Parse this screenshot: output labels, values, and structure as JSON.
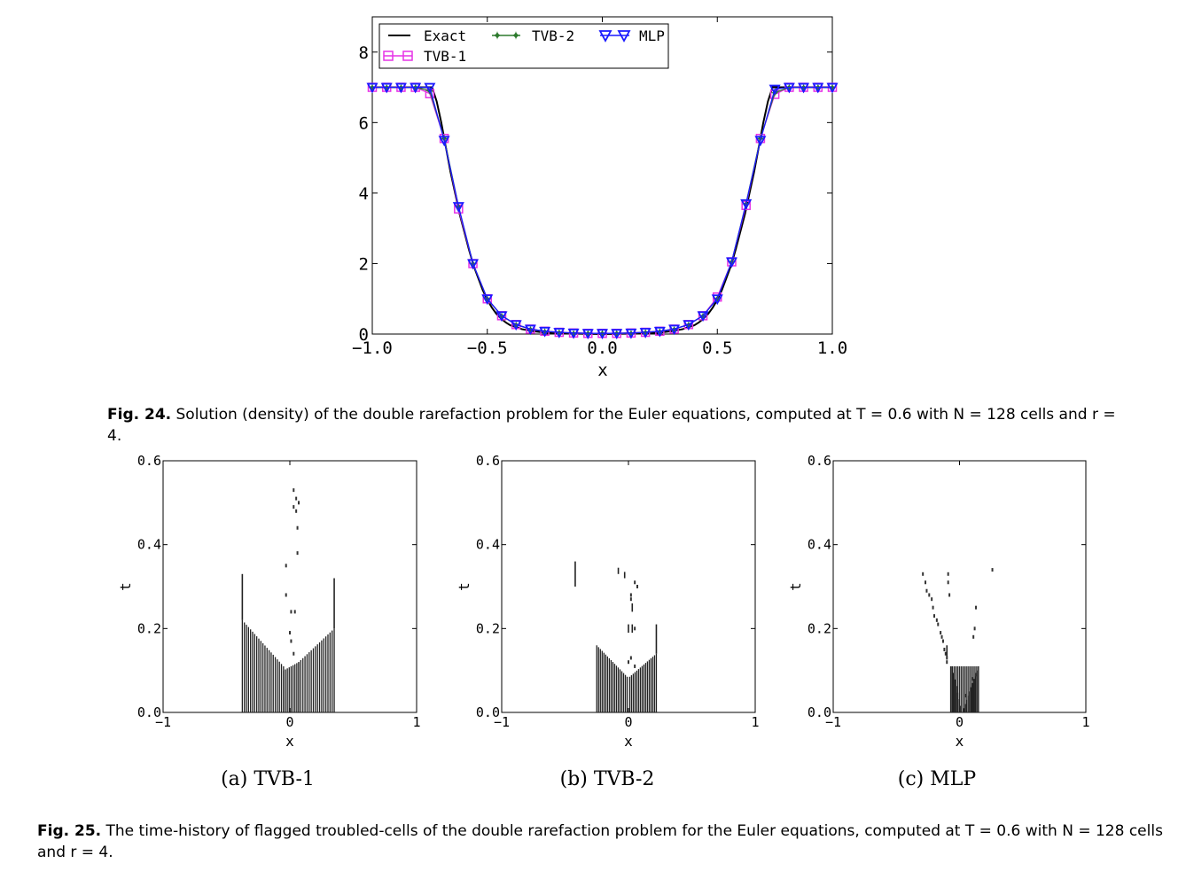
{
  "figure24": {
    "caption_label": "Fig. 24.",
    "caption_text": "Solution (density) of the double rarefaction problem for the Euler equations, computed at T = 0.6 with N = 128 cells and r = 4.",
    "chart_data": {
      "type": "line",
      "xlabel": "x",
      "ylabel": "",
      "xlim": [
        -1.0,
        1.0
      ],
      "ylim": [
        0,
        9
      ],
      "x_ticks": [
        "−1.0",
        "−0.5",
        "0.0",
        "0.5",
        "1.0"
      ],
      "y_ticks": [
        "0",
        "2",
        "4",
        "6",
        "8"
      ],
      "legend": [
        "Exact",
        "TVB-2",
        "MLP",
        "TVB-1"
      ],
      "legend_position": "top",
      "series": [
        {
          "name": "Exact",
          "color": "#000000",
          "marker": "none",
          "x": [
            -1.0,
            -0.74,
            -0.72,
            -0.7,
            -0.68,
            -0.66,
            -0.64,
            -0.62,
            -0.6,
            -0.58,
            -0.56,
            -0.54,
            -0.52,
            -0.5,
            -0.48,
            -0.46,
            -0.44,
            -0.42,
            -0.4,
            -0.35,
            -0.3,
            -0.25,
            -0.2,
            -0.1,
            0.0,
            0.1,
            0.2,
            0.25,
            0.3,
            0.35,
            0.4,
            0.42,
            0.44,
            0.46,
            0.48,
            0.5,
            0.52,
            0.54,
            0.56,
            0.58,
            0.6,
            0.62,
            0.64,
            0.66,
            0.68,
            0.7,
            0.72,
            0.74,
            1.0
          ],
          "y": [
            7.0,
            7.0,
            6.6,
            6.0,
            5.3,
            4.6,
            4.0,
            3.4,
            2.9,
            2.4,
            1.95,
            1.6,
            1.25,
            0.97,
            0.75,
            0.57,
            0.44,
            0.33,
            0.25,
            0.14,
            0.08,
            0.04,
            0.02,
            0.01,
            0.0,
            0.01,
            0.02,
            0.04,
            0.08,
            0.14,
            0.25,
            0.33,
            0.44,
            0.57,
            0.75,
            0.97,
            1.25,
            1.6,
            1.95,
            2.4,
            2.9,
            3.4,
            4.0,
            4.6,
            5.3,
            6.0,
            6.6,
            7.0,
            7.0
          ]
        },
        {
          "name": "TVB-1",
          "color": "#e633e6",
          "marker": "square",
          "x": [
            -1.0,
            -0.9375,
            -0.875,
            -0.8125,
            -0.75,
            -0.6875,
            -0.625,
            -0.5625,
            -0.5,
            -0.4375,
            -0.375,
            -0.3125,
            -0.25,
            -0.1875,
            -0.125,
            -0.0625,
            0.0,
            0.0625,
            0.125,
            0.1875,
            0.25,
            0.3125,
            0.375,
            0.4375,
            0.5,
            0.5625,
            0.625,
            0.6875,
            0.75,
            0.8125,
            0.875,
            0.9375,
            1.0
          ],
          "y": [
            7.0,
            7.0,
            7.0,
            7.0,
            6.82,
            5.55,
            3.55,
            2.0,
            1.0,
            0.52,
            0.27,
            0.14,
            0.08,
            0.05,
            0.03,
            0.02,
            0.02,
            0.02,
            0.03,
            0.05,
            0.08,
            0.14,
            0.27,
            0.52,
            1.05,
            2.05,
            3.65,
            5.55,
            6.8,
            7.0,
            7.0,
            7.0,
            7.0
          ]
        },
        {
          "name": "TVB-2",
          "color": "#2d7a2d",
          "marker": "star",
          "x": [
            -1.0,
            -0.9375,
            -0.875,
            -0.8125,
            -0.75,
            -0.6875,
            -0.625,
            -0.5625,
            -0.5,
            -0.4375,
            -0.375,
            -0.3125,
            -0.25,
            -0.1875,
            -0.125,
            -0.0625,
            0.0,
            0.0625,
            0.125,
            0.1875,
            0.25,
            0.3125,
            0.375,
            0.4375,
            0.5,
            0.5625,
            0.625,
            0.6875,
            0.75,
            0.8125,
            0.875,
            0.9375,
            1.0
          ],
          "y": [
            7.0,
            7.0,
            7.0,
            7.0,
            6.9,
            5.55,
            3.62,
            2.0,
            1.0,
            0.52,
            0.27,
            0.14,
            0.08,
            0.05,
            0.03,
            0.02,
            0.02,
            0.02,
            0.03,
            0.05,
            0.08,
            0.14,
            0.27,
            0.52,
            1.0,
            2.05,
            3.7,
            5.55,
            6.85,
            7.0,
            7.0,
            7.0,
            7.0
          ]
        },
        {
          "name": "MLP",
          "color": "#1a1aff",
          "marker": "triangle-down",
          "x": [
            -1.0,
            -0.9375,
            -0.875,
            -0.8125,
            -0.75,
            -0.6875,
            -0.625,
            -0.5625,
            -0.5,
            -0.4375,
            -0.375,
            -0.3125,
            -0.25,
            -0.1875,
            -0.125,
            -0.0625,
            0.0,
            0.0625,
            0.125,
            0.1875,
            0.25,
            0.3125,
            0.375,
            0.4375,
            0.5,
            0.5625,
            0.625,
            0.6875,
            0.75,
            0.8125,
            0.875,
            0.9375,
            1.0
          ],
          "y": [
            7.0,
            7.0,
            7.0,
            7.0,
            7.0,
            5.5,
            3.62,
            2.0,
            1.0,
            0.52,
            0.27,
            0.14,
            0.08,
            0.05,
            0.03,
            0.02,
            0.02,
            0.02,
            0.03,
            0.05,
            0.08,
            0.14,
            0.27,
            0.52,
            1.0,
            2.05,
            3.7,
            5.5,
            6.95,
            7.0,
            7.0,
            7.0,
            7.0
          ]
        }
      ]
    }
  },
  "figure25": {
    "caption_label": "Fig. 25.",
    "caption_text": "The time-history of flagged troubled-cells of the double rarefaction problem for the Euler equations, computed at T = 0.6 with N = 128 cells and r = 4.",
    "panels": [
      {
        "subcaption": "(a) TVB-1",
        "chart_data": {
          "type": "scatter",
          "xlabel": "x",
          "ylabel": "t",
          "xlim": [
            -1,
            1
          ],
          "ylim": [
            0.0,
            0.6
          ],
          "x_ticks": [
            "−1",
            "0",
            "1"
          ],
          "y_ticks": [
            "0.0",
            "0.2",
            "0.4",
            "0.6"
          ],
          "segments": [
            {
              "x": -0.375,
              "t0": 0.22,
              "t1": 0.33
            },
            {
              "x": 0.35,
              "t0": 0.2,
              "t1": 0.32
            }
          ],
          "fans": [
            {
              "x0": -0.375,
              "x1": -0.05,
              "t_top0": 0.22,
              "t_top1": 0.11,
              "step": 0.016
            },
            {
              "x0": 0.35,
              "x1": 0.07,
              "t_top0": 0.2,
              "t_top1": 0.12,
              "step": 0.016
            },
            {
              "x0": -0.05,
              "x1": 0.07,
              "t_top0": 0.1,
              "t_top1": 0.12,
              "step": 0.016
            }
          ],
          "points": [
            [
              0.03,
              0.53
            ],
            [
              0.05,
              0.51
            ],
            [
              0.03,
              0.49
            ],
            [
              0.05,
              0.48
            ],
            [
              0.07,
              0.5
            ],
            [
              0.06,
              0.44
            ],
            [
              -0.03,
              0.35
            ],
            [
              0.06,
              0.38
            ],
            [
              -0.03,
              0.28
            ],
            [
              0.01,
              0.24
            ],
            [
              0.04,
              0.24
            ],
            [
              0.0,
              0.19
            ],
            [
              0.01,
              0.17
            ],
            [
              0.03,
              0.14
            ]
          ]
        }
      },
      {
        "subcaption": "(b) TVB-2",
        "chart_data": {
          "type": "scatter",
          "xlabel": "x",
          "ylabel": "t",
          "xlim": [
            -1,
            1
          ],
          "ylim": [
            0.0,
            0.6
          ],
          "x_ticks": [
            "−1",
            "0",
            "1"
          ],
          "y_ticks": [
            "0.0",
            "0.2",
            "0.4",
            "0.6"
          ],
          "segments": [
            {
              "x": -0.42,
              "t0": 0.3,
              "t1": 0.36
            },
            {
              "x": 0.22,
              "t0": 0.14,
              "t1": 0.21
            },
            {
              "x": -0.08,
              "t0": 0.33,
              "t1": 0.345
            },
            {
              "x": -0.03,
              "t0": 0.32,
              "t1": 0.335
            },
            {
              "x": 0.03,
              "t0": 0.24,
              "t1": 0.26
            },
            {
              "x": 0.0,
              "t0": 0.19,
              "t1": 0.21
            },
            {
              "x": 0.03,
              "t0": 0.19,
              "t1": 0.21
            }
          ],
          "fans": [
            {
              "x0": -0.25,
              "x1": -0.01,
              "t_top0": 0.16,
              "t_top1": 0.085,
              "step": 0.014
            },
            {
              "x0": 0.22,
              "x1": 0.01,
              "t_top0": 0.14,
              "t_top1": 0.085,
              "step": 0.014
            }
          ],
          "points": [
            [
              0.05,
              0.31
            ],
            [
              0.07,
              0.3
            ],
            [
              0.02,
              0.28
            ],
            [
              0.02,
              0.27
            ],
            [
              0.05,
              0.2
            ],
            [
              0.02,
              0.13
            ],
            [
              0.0,
              0.12
            ],
            [
              0.05,
              0.11
            ]
          ]
        }
      },
      {
        "subcaption": "(c) MLP",
        "chart_data": {
          "type": "scatter",
          "xlabel": "x",
          "ylabel": "t",
          "xlim": [
            -1,
            1
          ],
          "ylim": [
            0.0,
            0.6
          ],
          "x_ticks": [
            "−1",
            "0",
            "1"
          ],
          "y_ticks": [
            "0.0",
            "0.2",
            "0.4",
            "0.6"
          ],
          "segments": [
            {
              "x": -0.1,
              "t0": 0.13,
              "t1": 0.16
            }
          ],
          "fans": [
            {
              "x0": -0.06,
              "x1": 0.02,
              "t_top0": 0.11,
              "t_top1": 0.0,
              "step": 0.012
            },
            {
              "x0": 0.02,
              "x1": 0.15,
              "t_top0": 0.0,
              "t_top1": 0.11,
              "step": 0.012
            },
            {
              "x0": -0.07,
              "x1": 0.15,
              "t_top0": 0.11,
              "t_top1": 0.11,
              "step": 0.014
            }
          ],
          "points": [
            [
              -0.29,
              0.33
            ],
            [
              -0.27,
              0.31
            ],
            [
              -0.26,
              0.29
            ],
            [
              -0.24,
              0.28
            ],
            [
              -0.22,
              0.27
            ],
            [
              -0.21,
              0.25
            ],
            [
              -0.2,
              0.23
            ],
            [
              -0.18,
              0.22
            ],
            [
              -0.17,
              0.21
            ],
            [
              -0.15,
              0.19
            ],
            [
              -0.14,
              0.18
            ],
            [
              -0.13,
              0.17
            ],
            [
              -0.12,
              0.15
            ],
            [
              -0.11,
              0.14
            ],
            [
              -0.1,
              0.13
            ],
            [
              -0.1,
              0.12
            ],
            [
              -0.09,
              0.33
            ],
            [
              -0.08,
              0.28
            ],
            [
              -0.09,
              0.31
            ],
            [
              0.13,
              0.25
            ],
            [
              0.12,
              0.2
            ],
            [
              0.11,
              0.18
            ],
            [
              0.26,
              0.34
            ],
            [
              0.05,
              0.04
            ],
            [
              0.1,
              0.08
            ],
            [
              0.13,
              0.09
            ]
          ]
        }
      }
    ]
  }
}
